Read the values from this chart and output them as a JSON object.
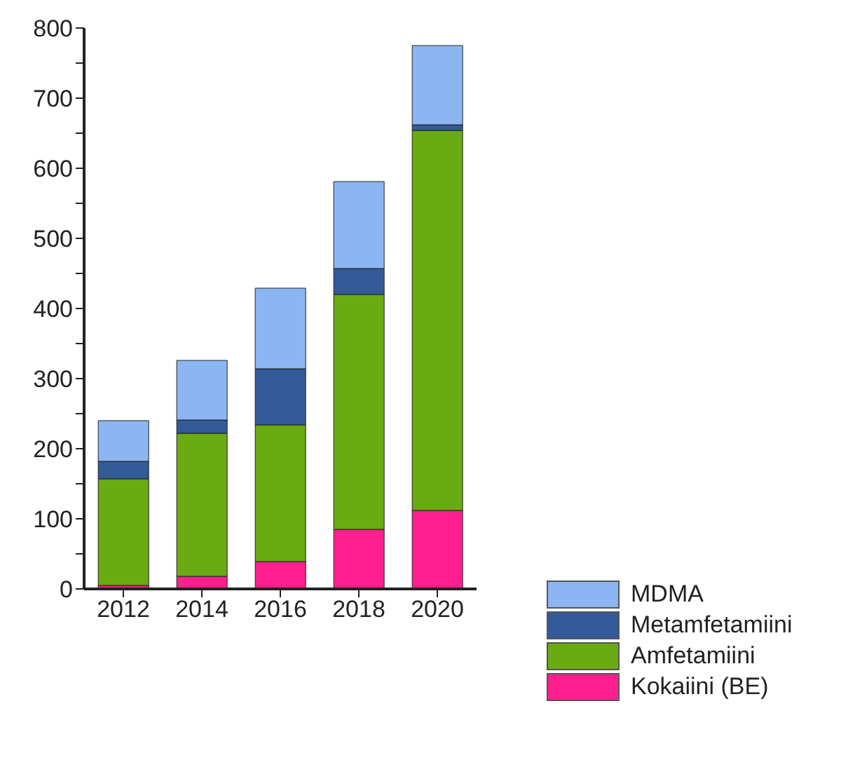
{
  "chart_data": {
    "type": "bar",
    "stacked": true,
    "categories": [
      "2012",
      "2014",
      "2016",
      "2018",
      "2020"
    ],
    "series": [
      {
        "name": "Kokaiini (BE)",
        "color": "#ff1f8e",
        "values": [
          5,
          18,
          39,
          85,
          112
        ]
      },
      {
        "name": "Amfetamiini",
        "color": "#6aaa12",
        "values": [
          152,
          204,
          195,
          335,
          542
        ]
      },
      {
        "name": "Metamfetamiini",
        "color": "#335a99",
        "values": [
          25,
          19,
          80,
          37,
          8
        ]
      },
      {
        "name": "MDMA",
        "color": "#8cb6f2",
        "values": [
          58,
          85,
          115,
          124,
          113
        ]
      }
    ],
    "ylim": [
      0,
      800
    ],
    "yticks": [
      0,
      {
        "value": 50,
        "label": null
      },
      100,
      {
        "value": 150,
        "label": null
      },
      200,
      {
        "value": 250,
        "label": null
      },
      300,
      {
        "value": 350,
        "label": null
      },
      400,
      {
        "value": 450,
        "label": null
      },
      500,
      {
        "value": 550,
        "label": null
      },
      600,
      {
        "value": 650,
        "label": null
      },
      700,
      {
        "value": 750,
        "label": null
      },
      800
    ],
    "grid": false,
    "legend": "bottom right"
  }
}
